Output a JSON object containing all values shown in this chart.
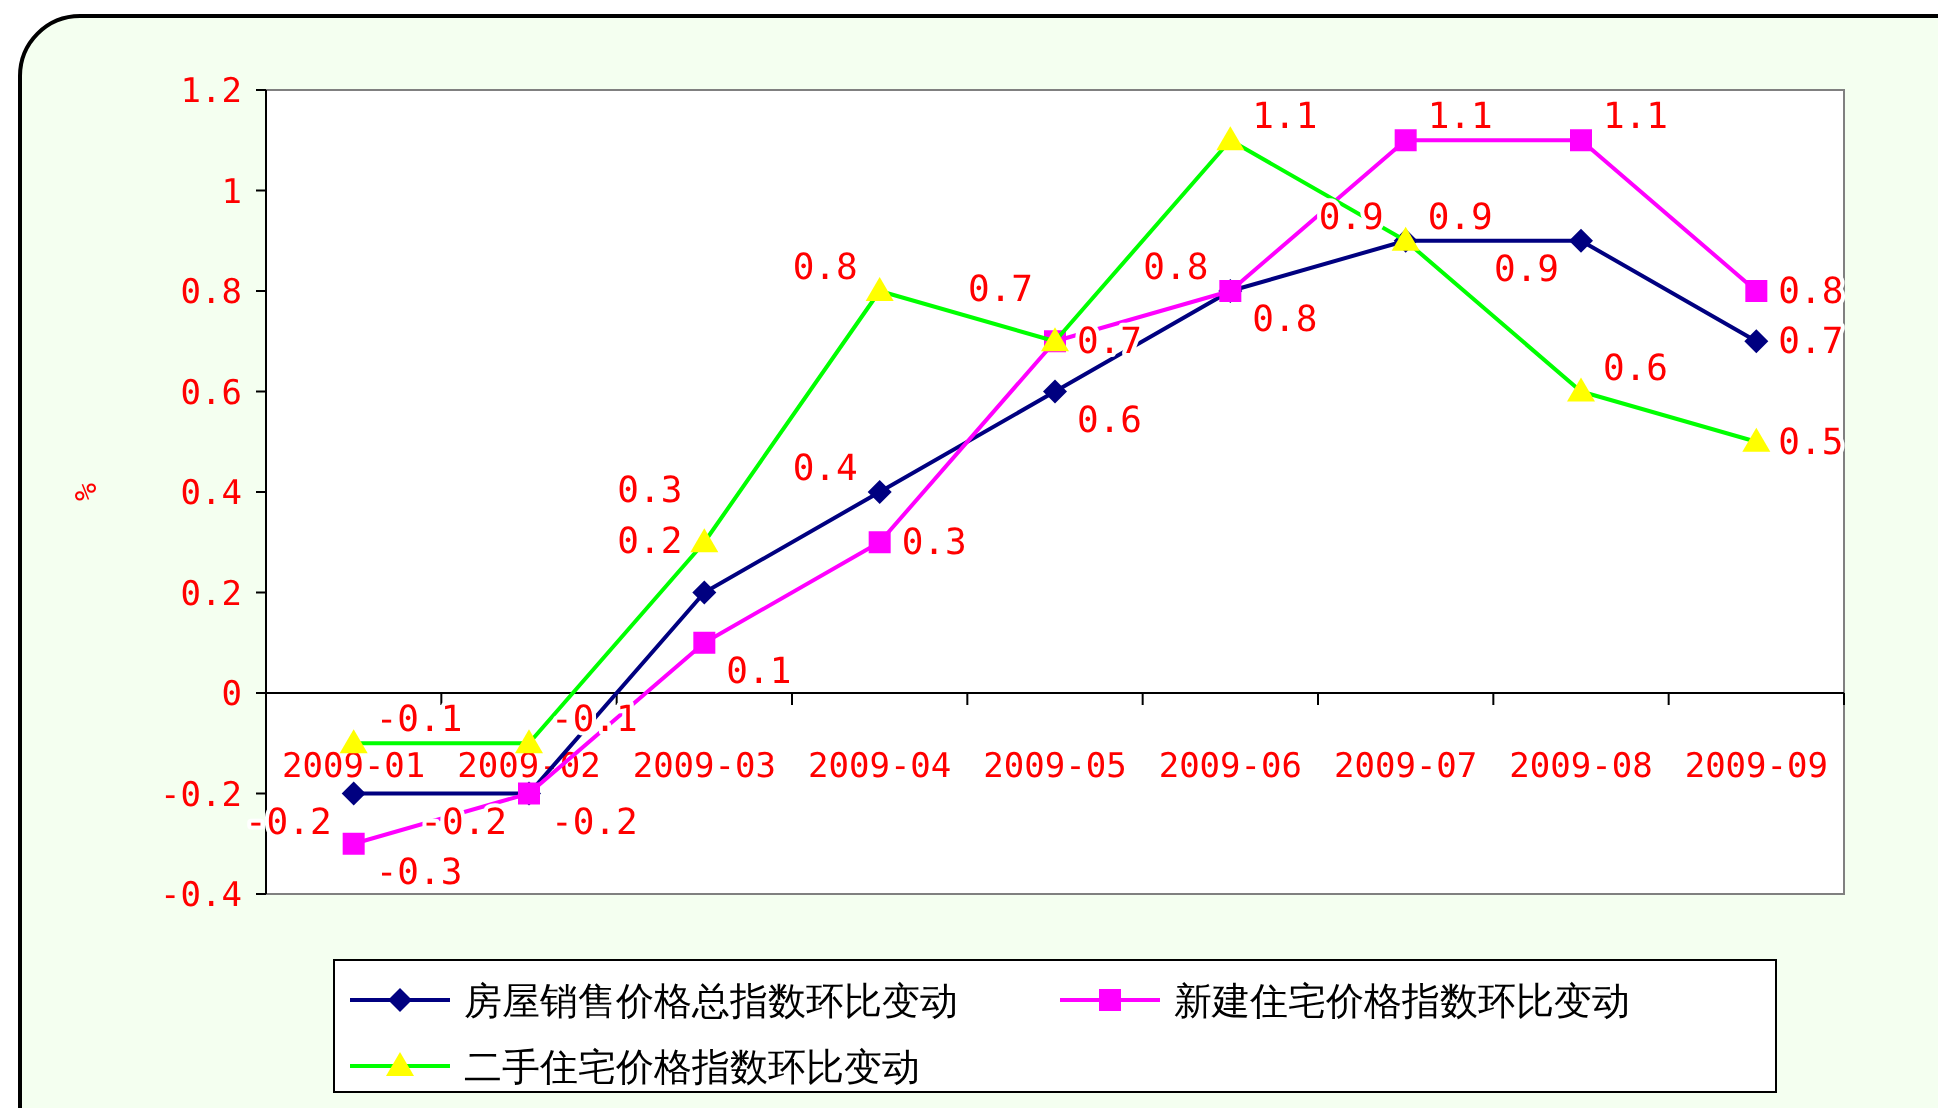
{
  "chart_data": {
    "type": "line",
    "ylabel": "%",
    "categories": [
      "2009-01",
      "2009-02",
      "2009-03",
      "2009-04",
      "2009-05",
      "2009-06",
      "2009-07",
      "2009-08",
      "2009-09"
    ],
    "ylim": [
      -0.4,
      1.2
    ],
    "yticks": [
      -0.4,
      -0.2,
      0,
      0.2,
      0.4,
      0.6,
      0.8,
      1,
      1.2
    ],
    "series": [
      {
        "name": "房屋销售价格总指数环比变动",
        "color": "#000080",
        "marker": "diamond",
        "values": [
          -0.2,
          -0.2,
          0.2,
          0.4,
          0.6,
          0.8,
          0.9,
          0.9,
          0.7
        ]
      },
      {
        "name": "新建住宅价格指数环比变动",
        "color": "#ff00ff",
        "marker": "square",
        "values": [
          -0.3,
          -0.2,
          0.1,
          0.3,
          0.7,
          0.8,
          1.1,
          1.1,
          0.8
        ]
      },
      {
        "name": "二手住宅价格指数环比变动",
        "color": "#00ff00",
        "colors": [
          "#ffff00",
          "#ffff00",
          "#ffff00",
          "#ffff00",
          "#ffff00",
          "#ffff00",
          "#ffff00",
          "#ffff00",
          "#ffff00"
        ],
        "marker": "triangle",
        "values": [
          -0.1,
          -0.1,
          0.3,
          0.8,
          0.7,
          1.1,
          0.9,
          0.6,
          0.5
        ]
      }
    ],
    "data_labels": true,
    "grid": false,
    "legend": "bottom"
  }
}
